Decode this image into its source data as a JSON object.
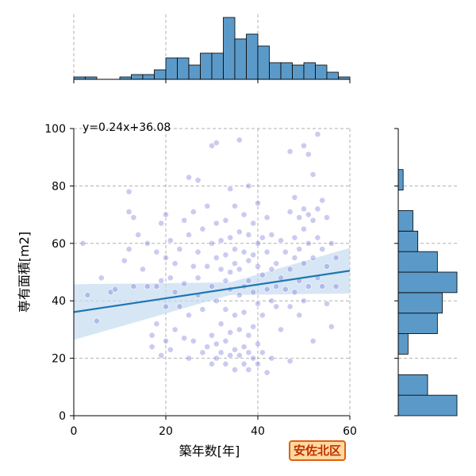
{
  "badge": {
    "text": "安佐北区",
    "colors": {
      "border": "#e06010",
      "background": "#ffd9a0",
      "text": "#c03000"
    }
  },
  "chart_data": {
    "type": "scatter",
    "title": "",
    "xlabel": "築年数[年]",
    "ylabel": "専有面積[m2]",
    "xlim": [
      0,
      60
    ],
    "ylim": [
      0,
      100
    ],
    "xticks": [
      0,
      20,
      40,
      60
    ],
    "yticks": [
      0,
      20,
      40,
      60,
      80,
      100
    ],
    "grid": true,
    "regression": {
      "equation": "y=0.24x+36.08",
      "slope": 0.24,
      "intercept": 36.08,
      "color": "#1f77b4",
      "ci_color": "#c6dbef"
    },
    "colors": {
      "points": "#6a6ad8",
      "hist_fill": "#5b9ac8",
      "hist_edge": "#000000",
      "equation_text": "#0000c8"
    },
    "marginal_x_counts": [
      1,
      1,
      0,
      0,
      1,
      2,
      2,
      4,
      9,
      9,
      6,
      11,
      11,
      26,
      17,
      19,
      14,
      7,
      7,
      6,
      7,
      6,
      3,
      1
    ],
    "marginal_y_counts": [
      12,
      6,
      0,
      2,
      8,
      9,
      12,
      8,
      4,
      3,
      0,
      1,
      0,
      0,
      2
    ],
    "points": [
      [
        2,
        60
      ],
      [
        3,
        42
      ],
      [
        5,
        33
      ],
      [
        6,
        48
      ],
      [
        8,
        43
      ],
      [
        9,
        44
      ],
      [
        11,
        54
      ],
      [
        12,
        58
      ],
      [
        12,
        71
      ],
      [
        12,
        78
      ],
      [
        13,
        69
      ],
      [
        13,
        45
      ],
      [
        14,
        63
      ],
      [
        15,
        51
      ],
      [
        16,
        60
      ],
      [
        16,
        45
      ],
      [
        17,
        28
      ],
      [
        17,
        24
      ],
      [
        18,
        57
      ],
      [
        18,
        45
      ],
      [
        18,
        32
      ],
      [
        19,
        47
      ],
      [
        19,
        21
      ],
      [
        19,
        67
      ],
      [
        20,
        70
      ],
      [
        20,
        55
      ],
      [
        20,
        38
      ],
      [
        20,
        26
      ],
      [
        21,
        23
      ],
      [
        21,
        61
      ],
      [
        21,
        48
      ],
      [
        22,
        43
      ],
      [
        22,
        30
      ],
      [
        22,
        53
      ],
      [
        23,
        58
      ],
      [
        23,
        38
      ],
      [
        24,
        46
      ],
      [
        24,
        27
      ],
      [
        24,
        68
      ],
      [
        25,
        83
      ],
      [
        25,
        63
      ],
      [
        25,
        35
      ],
      [
        25,
        20
      ],
      [
        26,
        71
      ],
      [
        26,
        52
      ],
      [
        26,
        26
      ],
      [
        27,
        48
      ],
      [
        27,
        82
      ],
      [
        27,
        57
      ],
      [
        27,
        42
      ],
      [
        28,
        65
      ],
      [
        28,
        22
      ],
      [
        28,
        37
      ],
      [
        29,
        73
      ],
      [
        29,
        52
      ],
      [
        29,
        24
      ],
      [
        30,
        94
      ],
      [
        30,
        60
      ],
      [
        30,
        45
      ],
      [
        30,
        28
      ],
      [
        30,
        18
      ],
      [
        31,
        95
      ],
      [
        31,
        67
      ],
      [
        31,
        55
      ],
      [
        31,
        40
      ],
      [
        31,
        25
      ],
      [
        31,
        20
      ],
      [
        32,
        61
      ],
      [
        32,
        51
      ],
      [
        32,
        32
      ],
      [
        32,
        22
      ],
      [
        33,
        68
      ],
      [
        33,
        56
      ],
      [
        33,
        47
      ],
      [
        33,
        37
      ],
      [
        33,
        26
      ],
      [
        33,
        18
      ],
      [
        34,
        79
      ],
      [
        34,
        62
      ],
      [
        34,
        50
      ],
      [
        34,
        44
      ],
      [
        34,
        29
      ],
      [
        34,
        21
      ],
      [
        35,
        73
      ],
      [
        35,
        58
      ],
      [
        35,
        53
      ],
      [
        35,
        35
      ],
      [
        35,
        23
      ],
      [
        35,
        16
      ],
      [
        36,
        96
      ],
      [
        36,
        64
      ],
      [
        36,
        51
      ],
      [
        36,
        42
      ],
      [
        36,
        30
      ],
      [
        36,
        21
      ],
      [
        37,
        70
      ],
      [
        37,
        57
      ],
      [
        37,
        45
      ],
      [
        37,
        36
      ],
      [
        37,
        24
      ],
      [
        37,
        18
      ],
      [
        38,
        80
      ],
      [
        38,
        63
      ],
      [
        38,
        54
      ],
      [
        38,
        47
      ],
      [
        38,
        28
      ],
      [
        38,
        22
      ],
      [
        38,
        16
      ],
      [
        39,
        67
      ],
      [
        39,
        56
      ],
      [
        39,
        43
      ],
      [
        39,
        31
      ],
      [
        39,
        20
      ],
      [
        40,
        74
      ],
      [
        40,
        60
      ],
      [
        40,
        52
      ],
      [
        40,
        39
      ],
      [
        40,
        25
      ],
      [
        40,
        18
      ],
      [
        41,
        62
      ],
      [
        41,
        49
      ],
      [
        41,
        35
      ],
      [
        41,
        22
      ],
      [
        42,
        69
      ],
      [
        42,
        57
      ],
      [
        42,
        44
      ],
      [
        42,
        15
      ],
      [
        43,
        63
      ],
      [
        43,
        51
      ],
      [
        43,
        40
      ],
      [
        43,
        20
      ],
      [
        44,
        53
      ],
      [
        44,
        45
      ],
      [
        44,
        38
      ],
      [
        45,
        61
      ],
      [
        45,
        48
      ],
      [
        45,
        30
      ],
      [
        46,
        57
      ],
      [
        46,
        44
      ],
      [
        47,
        92
      ],
      [
        47,
        71
      ],
      [
        47,
        51
      ],
      [
        47,
        38
      ],
      [
        47,
        19
      ],
      [
        48,
        76
      ],
      [
        48,
        62
      ],
      [
        48,
        55
      ],
      [
        48,
        43
      ],
      [
        49,
        69
      ],
      [
        49,
        58
      ],
      [
        49,
        47
      ],
      [
        49,
        35
      ],
      [
        50,
        94
      ],
      [
        50,
        72
      ],
      [
        50,
        65
      ],
      [
        50,
        53
      ],
      [
        50,
        40
      ],
      [
        51,
        91
      ],
      [
        51,
        70
      ],
      [
        51,
        60
      ],
      [
        51,
        45
      ],
      [
        52,
        84
      ],
      [
        52,
        68
      ],
      [
        52,
        55
      ],
      [
        52,
        26
      ],
      [
        53,
        98
      ],
      [
        53,
        72
      ],
      [
        53,
        62
      ],
      [
        53,
        48
      ],
      [
        54,
        75
      ],
      [
        54,
        58
      ],
      [
        54,
        45
      ],
      [
        55,
        69
      ],
      [
        55,
        52
      ],
      [
        55,
        39
      ],
      [
        56,
        60
      ],
      [
        56,
        31
      ],
      [
        57,
        55
      ],
      [
        57,
        45
      ]
    ]
  }
}
